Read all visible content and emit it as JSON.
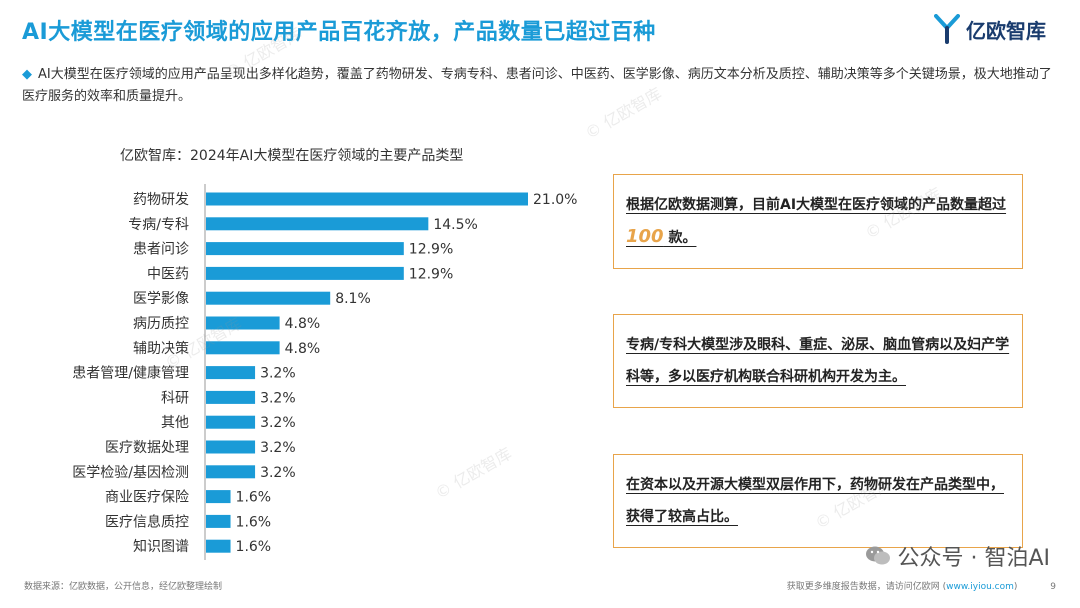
{
  "header": {
    "title": "AI大模型在医疗领域的应用产品百花齐放，产品数量已超过百种",
    "logo_text": "亿欧智库",
    "accent_color": "#1a9bd7"
  },
  "intro": {
    "bullet": "◆",
    "text": "AI大模型在医疗领域的应用产品呈现出多样化趋势，覆盖了药物研发、专病专科、患者问诊、中医药、医学影像、病历文本分析及质控、辅助决策等多个关键场景，极大地推动了医疗服务的效率和质量提升。"
  },
  "chart_title": "亿欧智库：2024年AI大模型在医疗领域的主要产品类型",
  "chart_data": {
    "type": "bar",
    "orientation": "horizontal",
    "categories": [
      "药物研发",
      "专病/专科",
      "患者问诊",
      "中医药",
      "医学影像",
      "病历质控",
      "辅助决策",
      "患者管理/健康管理",
      "科研",
      "其他",
      "医疗数据处理",
      "医学检验/基因检测",
      "商业医疗保险",
      "医疗信息质控",
      "知识图谱"
    ],
    "values": [
      21.0,
      14.5,
      12.9,
      12.9,
      8.1,
      4.8,
      4.8,
      3.2,
      3.2,
      3.2,
      3.2,
      3.2,
      1.6,
      1.6,
      1.6
    ],
    "value_labels": [
      "21.0%",
      "14.5%",
      "12.9%",
      "12.9%",
      "8.1%",
      "4.8%",
      "4.8%",
      "3.2%",
      "3.2%",
      "3.2%",
      "3.2%",
      "3.2%",
      "1.6%",
      "1.6%",
      "1.6%"
    ],
    "bar_color": "#1a9bd7",
    "xlim": [
      0,
      21.0
    ],
    "grid": false
  },
  "callouts": [
    {
      "pre": "根据亿欧数据测算，目前AI大模型在医疗领域的产品数量超过",
      "highlight": "100",
      "post": " 款。"
    },
    {
      "pre": "专病/专科大模型涉及眼科、重症、泌尿、脑血管病以及妇产学科等，多以医疗机构联合科研机构开发为主。",
      "highlight": "",
      "post": ""
    },
    {
      "pre": "在资本以及开源大模型双层作用下，药物研发在产品类型中，获得了较高占比。",
      "highlight": "",
      "post": ""
    }
  ],
  "footer": {
    "source": "数据来源：亿欧数据，公开信息，经亿欧整理绘制",
    "more_prefix": "获取更多维度报告数据，请访问亿欧网 (",
    "more_link": "www.iyiou.com",
    "more_suffix": ")",
    "page": "9"
  },
  "wechat": {
    "text": "公众号 · 智泊AI",
    "icon": "wechat-icon"
  },
  "watermark": "© 亿欧智库"
}
